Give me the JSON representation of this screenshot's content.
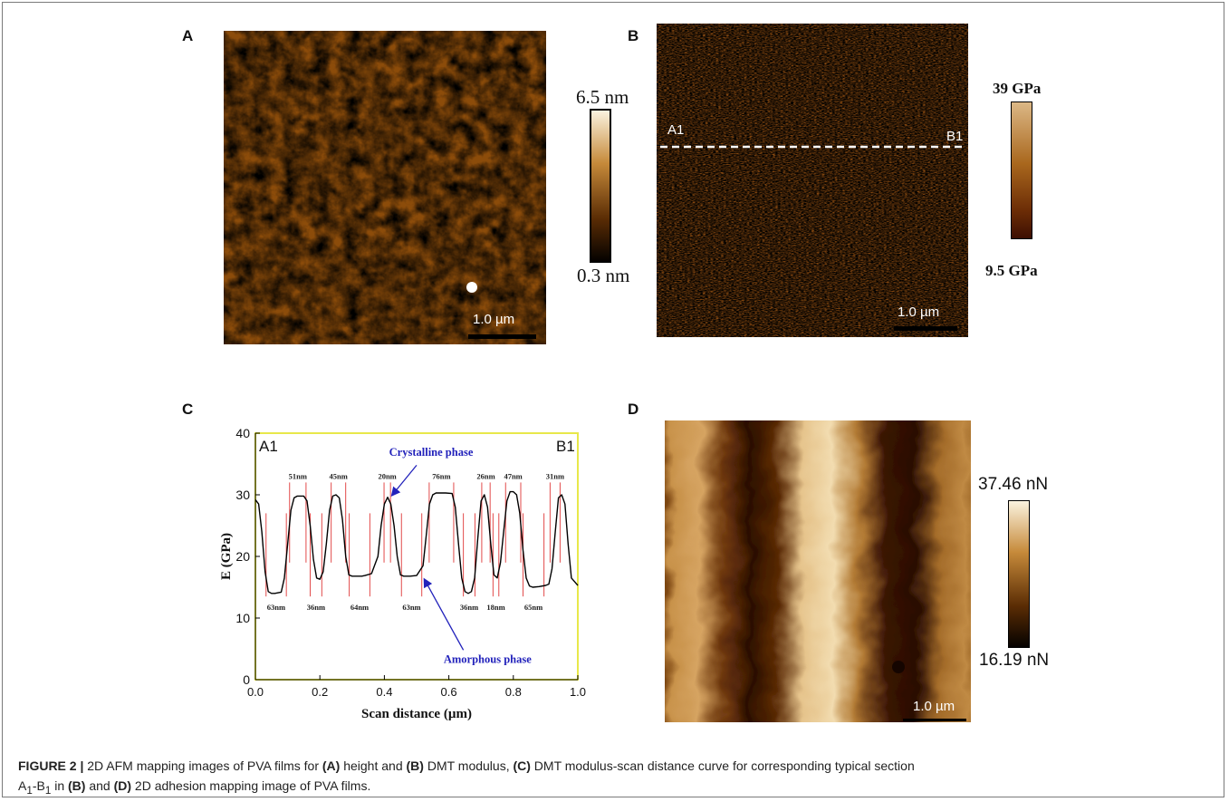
{
  "panels": {
    "a": {
      "letter": "A",
      "scalebar": "1.0 µm",
      "colorbar": {
        "max": "6.5 nm",
        "min": "0.3 nm"
      }
    },
    "b": {
      "letter": "B",
      "scalebar": "1.0 µm",
      "section_start": "A1",
      "section_end": "B1",
      "colorbar": {
        "max": "39 GPa",
        "min": "9.5 GPa"
      }
    },
    "c": {
      "letter": "C"
    },
    "d": {
      "letter": "D",
      "scalebar": "1.0 µm",
      "colorbar": {
        "max": "37.46 nN",
        "min": "16.19 nN"
      }
    }
  },
  "chart_data": {
    "type": "line",
    "xlabel": "Scan distance (µm)",
    "ylabel": "E (GPa)",
    "xlim": [
      0.0,
      1.0
    ],
    "ylim": [
      0,
      40
    ],
    "x_ticks": [
      "0.0",
      "0.2",
      "0.4",
      "0.6",
      "0.8",
      "1.0"
    ],
    "y_ticks": [
      "0",
      "10",
      "20",
      "30",
      "40"
    ],
    "corner_labels": {
      "left": "A1",
      "right": "B1"
    },
    "annotations": {
      "crystalline": "Crystalline phase",
      "amorphous": "Amorphous phase"
    },
    "x": [
      0.0,
      0.01,
      0.02,
      0.03,
      0.04,
      0.05,
      0.06,
      0.08,
      0.09,
      0.1,
      0.11,
      0.12,
      0.13,
      0.15,
      0.16,
      0.17,
      0.18,
      0.19,
      0.2,
      0.21,
      0.22,
      0.23,
      0.24,
      0.25,
      0.26,
      0.27,
      0.28,
      0.29,
      0.3,
      0.31,
      0.32,
      0.33,
      0.34,
      0.36,
      0.38,
      0.39,
      0.4,
      0.41,
      0.42,
      0.43,
      0.44,
      0.45,
      0.46,
      0.47,
      0.48,
      0.5,
      0.52,
      0.53,
      0.54,
      0.55,
      0.56,
      0.57,
      0.59,
      0.61,
      0.62,
      0.63,
      0.64,
      0.65,
      0.66,
      0.67,
      0.68,
      0.69,
      0.7,
      0.71,
      0.72,
      0.73,
      0.74,
      0.75,
      0.76,
      0.77,
      0.78,
      0.79,
      0.8,
      0.81,
      0.82,
      0.83,
      0.84,
      0.85,
      0.86,
      0.88,
      0.9,
      0.91,
      0.92,
      0.93,
      0.94,
      0.95,
      0.96,
      0.97,
      0.98,
      1.0
    ],
    "y": [
      29.2,
      28.5,
      24.0,
      17.5,
      14.3,
      14.0,
      14.0,
      14.2,
      16.5,
      22.0,
      27.5,
      29.5,
      29.8,
      29.8,
      29.0,
      25.0,
      19.5,
      16.5,
      16.3,
      17.5,
      22.0,
      27.5,
      29.8,
      30.0,
      29.5,
      26.0,
      20.0,
      17.0,
      16.8,
      16.8,
      16.8,
      16.8,
      16.9,
      17.2,
      20.0,
      25.0,
      28.5,
      29.6,
      28.5,
      25.0,
      20.0,
      17.0,
      16.8,
      16.8,
      16.8,
      16.9,
      18.5,
      23.5,
      28.5,
      30.0,
      30.3,
      30.3,
      30.3,
      30.2,
      28.0,
      22.0,
      16.5,
      14.3,
      14.0,
      14.3,
      16.5,
      23.0,
      29.0,
      30.0,
      28.0,
      22.0,
      17.0,
      16.5,
      19.0,
      24.0,
      29.0,
      30.5,
      30.5,
      30.0,
      27.0,
      21.0,
      16.5,
      15.2,
      15.0,
      15.1,
      15.3,
      15.5,
      18.0,
      24.0,
      29.5,
      30.0,
      28.5,
      22.0,
      16.5,
      15.3
    ]
  },
  "segments": [
    {
      "label": "51nm",
      "kind": "crystalline",
      "start": 0.106,
      "end": 0.157
    },
    {
      "label": "45nm",
      "kind": "crystalline",
      "start": 0.235,
      "end": 0.28
    },
    {
      "label": "20nm",
      "kind": "crystalline",
      "start": 0.399,
      "end": 0.419
    },
    {
      "label": "76nm",
      "kind": "crystalline",
      "start": 0.539,
      "end": 0.615
    },
    {
      "label": "26nm",
      "kind": "crystalline",
      "start": 0.702,
      "end": 0.728
    },
    {
      "label": "47nm",
      "kind": "crystalline",
      "start": 0.776,
      "end": 0.823
    },
    {
      "label": "31nm",
      "kind": "crystalline",
      "start": 0.914,
      "end": 0.945
    },
    {
      "label": "63nm",
      "kind": "amorphous",
      "start": 0.033,
      "end": 0.096
    },
    {
      "label": "36nm",
      "kind": "amorphous",
      "start": 0.17,
      "end": 0.206
    },
    {
      "label": "64nm",
      "kind": "amorphous",
      "start": 0.291,
      "end": 0.355
    },
    {
      "label": "63nm",
      "kind": "amorphous",
      "start": 0.453,
      "end": 0.516
    },
    {
      "label": "36nm",
      "kind": "amorphous",
      "start": 0.645,
      "end": 0.681
    },
    {
      "label": "18nm",
      "kind": "amorphous",
      "start": 0.737,
      "end": 0.755
    },
    {
      "label": "65nm",
      "kind": "amorphous",
      "start": 0.83,
      "end": 0.895
    }
  ],
  "caption": {
    "title": "FIGURE 2 |",
    "t1": " 2D AFM mapping images of PVA films for ",
    "b1": "(A)",
    "t2": " height and ",
    "b2": "(B)",
    "t3": " DMT modulus, ",
    "b3": "(C)",
    "t4": " DMT modulus-scan distance curve for corresponding typical section",
    "t5": "-B",
    "t6": " in ",
    "b4": "(B)",
    "t7": " and ",
    "b5": "(D)",
    "t8": " 2D adhesion mapping image of PVA films.",
    "sec_a": "A",
    "sec_sub": "1"
  },
  "colors": {
    "afm_dark": "#2a0d00",
    "afm_mid": "#9a5a12",
    "afm_light": "#f6e7c8",
    "axis_frame": "#e8e84a",
    "marker": "#e24a4a",
    "annotation": "#2222bb"
  }
}
